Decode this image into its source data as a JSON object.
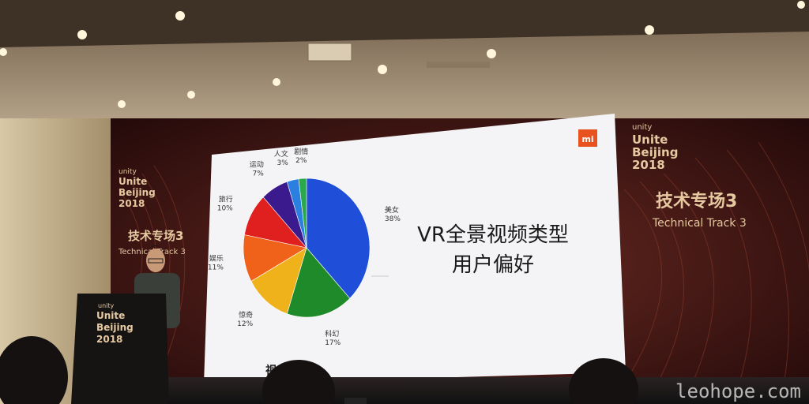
{
  "colors": {
    "ceiling": "#b9a58c",
    "backdrop": "#3a1414",
    "screen": "#f4f4f6",
    "xiaomi": "#e8521f",
    "accent_text": "#e6c9a0"
  },
  "backdrop_left": {
    "unity_tag": "unity",
    "line1": "Unite",
    "line2": "Beijing",
    "line3": "2018",
    "track_cn": "技术专场3",
    "track_en": "Technical Track 3"
  },
  "backdrop_right": {
    "unity_tag": "unity",
    "line1": "Unite",
    "line2": "Beijing",
    "line3": "2018",
    "track_cn": "技术专场3",
    "track_en": "Technical Track 3"
  },
  "podium": {
    "unity_tag": "unity",
    "line1": "Unite",
    "line2": "Beijing",
    "line3": "2018"
  },
  "slide": {
    "logo": "mi",
    "title_line1": "VR全景视频类型",
    "title_line2": "用户偏好",
    "footer_partial": "视"
  },
  "chart_data": {
    "type": "pie",
    "title": "VR全景视频类型 用户偏好",
    "slices": [
      {
        "label": "美女",
        "pct": "38%",
        "value": 38,
        "color": "#1f4fd8"
      },
      {
        "label": "科幻",
        "pct": "17%",
        "value": 17,
        "color": "#1e8a2a"
      },
      {
        "label": "惊奇",
        "pct": "12%",
        "value": 12,
        "color": "#f0b21a"
      },
      {
        "label": "娱乐",
        "pct": "11%",
        "value": 11,
        "color": "#f0621a"
      },
      {
        "label": "旅行",
        "pct": "10%",
        "value": 10,
        "color": "#e01f1f"
      },
      {
        "label": "运动",
        "pct": "7%",
        "value": 7,
        "color": "#3a1a8c"
      },
      {
        "label": "人文",
        "pct": "3%",
        "value": 3,
        "color": "#2a7fe0"
      },
      {
        "label": "剧情",
        "pct": "2%",
        "value": 2,
        "color": "#2aa84a"
      }
    ]
  },
  "watermark": "leohope.com"
}
